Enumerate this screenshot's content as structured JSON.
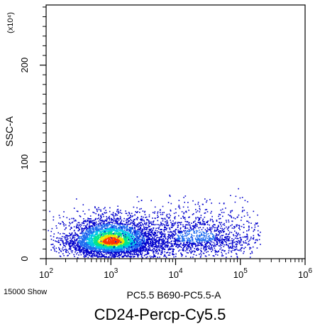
{
  "chart_data": {
    "type": "scatter",
    "style": "density-dot-plot",
    "xlabel": "PC5.5 B690-PC5.5-A",
    "ylabel": "SSC-A",
    "y_multiplier_label": "(x10⁴)",
    "x_scale": "log",
    "xlim": [
      100,
      1000000
    ],
    "ylim": [
      0,
      262144
    ],
    "x_ticks": [
      100,
      1000,
      10000,
      100000,
      1000000
    ],
    "x_tick_labels": [
      [
        "10",
        "2"
      ],
      [
        "10",
        "3"
      ],
      [
        "10",
        "4"
      ],
      [
        "10",
        "5"
      ],
      [
        "10",
        "6"
      ]
    ],
    "y_ticks": [
      0,
      1000000,
      2000000
    ],
    "y_tick_labels": [
      "0",
      "100",
      "200"
    ],
    "event_count_label": "15000 Show",
    "caption": "CD24-Percp-Cy5.5",
    "grid": false,
    "density_colors": [
      "#0000cc",
      "#1e6cf0",
      "#00c8e6",
      "#00e68c",
      "#e6e600",
      "#ff3300"
    ],
    "populations": [
      {
        "x_center_log10": 3.0,
        "x_spread_log10": 0.35,
        "y_center": 18000,
        "y_spread": 9000,
        "count": 4200
      },
      {
        "x_center_log10": 4.3,
        "x_spread_log10": 0.55,
        "y_center": 22000,
        "y_spread": 11000,
        "count": 1600
      }
    ]
  }
}
